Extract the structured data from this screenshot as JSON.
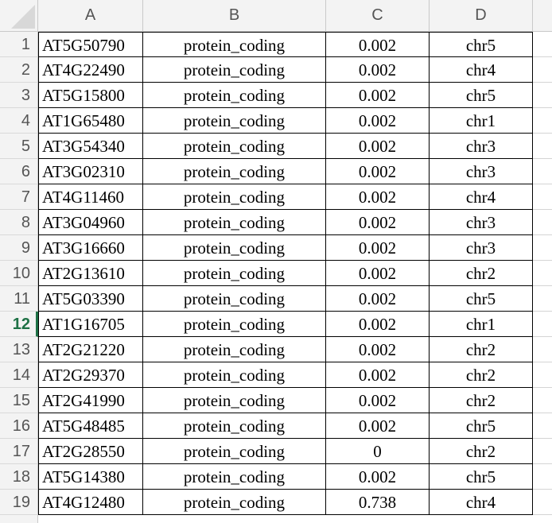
{
  "columns": [
    "A",
    "B",
    "C",
    "D"
  ],
  "active_row": "12",
  "rows": [
    {
      "n": "1",
      "a": "AT5G50790",
      "b": "protein_coding",
      "c": "0.002",
      "d": "chr5"
    },
    {
      "n": "2",
      "a": "AT4G22490",
      "b": "protein_coding",
      "c": "0.002",
      "d": "chr4"
    },
    {
      "n": "3",
      "a": "AT5G15800",
      "b": "protein_coding",
      "c": "0.002",
      "d": "chr5"
    },
    {
      "n": "4",
      "a": "AT1G65480",
      "b": "protein_coding",
      "c": "0.002",
      "d": "chr1"
    },
    {
      "n": "5",
      "a": "AT3G54340",
      "b": "protein_coding",
      "c": "0.002",
      "d": "chr3"
    },
    {
      "n": "6",
      "a": "AT3G02310",
      "b": "protein_coding",
      "c": "0.002",
      "d": "chr3"
    },
    {
      "n": "7",
      "a": "AT4G11460",
      "b": "protein_coding",
      "c": "0.002",
      "d": "chr4"
    },
    {
      "n": "8",
      "a": "AT3G04960",
      "b": "protein_coding",
      "c": "0.002",
      "d": "chr3"
    },
    {
      "n": "9",
      "a": "AT3G16660",
      "b": "protein_coding",
      "c": "0.002",
      "d": "chr3"
    },
    {
      "n": "10",
      "a": "AT2G13610",
      "b": "protein_coding",
      "c": "0.002",
      "d": "chr2"
    },
    {
      "n": "11",
      "a": "AT5G03390",
      "b": "protein_coding",
      "c": "0.002",
      "d": "chr5"
    },
    {
      "n": "12",
      "a": "AT1G16705",
      "b": "protein_coding",
      "c": "0.002",
      "d": "chr1"
    },
    {
      "n": "13",
      "a": "AT2G21220",
      "b": "protein_coding",
      "c": "0.002",
      "d": "chr2"
    },
    {
      "n": "14",
      "a": "AT2G29370",
      "b": "protein_coding",
      "c": "0.002",
      "d": "chr2"
    },
    {
      "n": "15",
      "a": "AT2G41990",
      "b": "protein_coding",
      "c": "0.002",
      "d": "chr2"
    },
    {
      "n": "16",
      "a": "AT5G48485",
      "b": "protein_coding",
      "c": "0.002",
      "d": "chr5"
    },
    {
      "n": "17",
      "a": "AT2G28550",
      "b": "protein_coding",
      "c": "0",
      "d": "chr2"
    },
    {
      "n": "18",
      "a": "AT5G14380",
      "b": "protein_coding",
      "c": "0.002",
      "d": "chr5"
    },
    {
      "n": "19",
      "a": "AT4G12480",
      "b": "protein_coding",
      "c": "0.738",
      "d": "chr4"
    }
  ]
}
